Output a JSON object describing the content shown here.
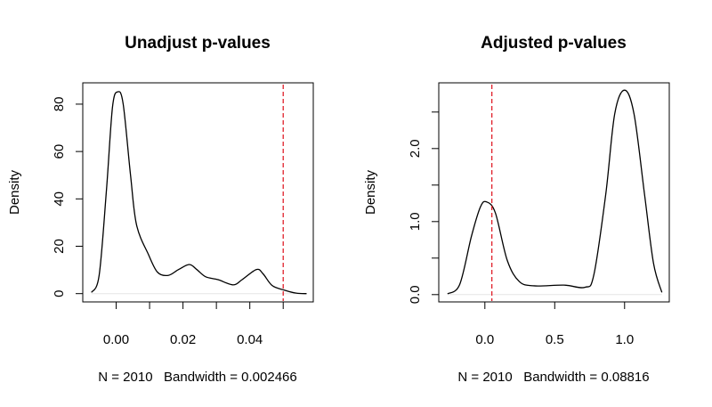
{
  "chart_data": [
    {
      "type": "line",
      "title": "Unadjust p-values",
      "xlabel": "N = 2010   Bandwidth = 0.002466",
      "ylabel": "Density",
      "xlim": [
        -0.01,
        0.059
      ],
      "ylim": [
        -3.5,
        89
      ],
      "xticks": [
        "0.00",
        "0.02",
        "0.04"
      ],
      "xtick_values": [
        0.0,
        0.01,
        0.02,
        0.03,
        0.04,
        0.05
      ],
      "xtick_labeled": [
        0.0,
        0.02,
        0.04
      ],
      "yticks": [
        "0",
        "20",
        "40",
        "60",
        "80"
      ],
      "ytick_values": [
        0,
        20,
        40,
        60,
        80
      ],
      "grid": false,
      "reference_line": {
        "x": 0.05,
        "color": "#e0202a",
        "style": "dashed"
      },
      "line_color": "#000000",
      "x": [
        -0.0074,
        -0.0051,
        -0.0029,
        -0.0011,
        0.0005,
        0.0021,
        0.0043,
        0.0061,
        0.0097,
        0.0124,
        0.0156,
        0.0187,
        0.0219,
        0.0241,
        0.0268,
        0.0305,
        0.035,
        0.0377,
        0.042,
        0.044,
        0.0467,
        0.0503,
        0.0539,
        0.057
      ],
      "y": [
        0.5,
        7.7,
        43.9,
        78.8,
        85.2,
        80,
        50,
        29,
        16.4,
        9,
        7.7,
        10.2,
        12.3,
        10.2,
        7.1,
        5.9,
        3.7,
        5.9,
        10.2,
        8.3,
        3.4,
        1.5,
        0.2,
        0
      ]
    },
    {
      "type": "line",
      "title": "Adjusted p-values",
      "xlabel": "N = 2010   Bandwidth = 0.08816",
      "ylabel": "Density",
      "xlim": [
        -0.33,
        1.32
      ],
      "ylim": [
        -0.1,
        2.9
      ],
      "xticks": [
        "0.0",
        "0.5",
        "1.0"
      ],
      "xtick_values": [
        0.0,
        0.5,
        1.0
      ],
      "yticks": [
        "0.0",
        "1.0",
        "2.0"
      ],
      "ytick_values": [
        0,
        0.5,
        1.0,
        1.5,
        2.0,
        2.5
      ],
      "ytick_labeled": [
        0,
        1.0,
        2.0
      ],
      "grid": false,
      "reference_line": {
        "x": 0.05,
        "color": "#e0202a",
        "style": "dashed"
      },
      "line_color": "#000000",
      "x": [
        -0.267,
        -0.18,
        -0.096,
        -0.032,
        0.011,
        0.075,
        0.16,
        0.246,
        0.353,
        0.566,
        0.716,
        0.78,
        0.865,
        0.929,
        1.0,
        1.068,
        1.143,
        1.207,
        1.267
      ],
      "y": [
        0.01,
        0.14,
        0.8,
        1.2,
        1.27,
        1.12,
        0.47,
        0.18,
        0.12,
        0.13,
        0.1,
        0.27,
        1.37,
        2.47,
        2.8,
        2.47,
        1.37,
        0.43,
        0.03
      ]
    }
  ]
}
